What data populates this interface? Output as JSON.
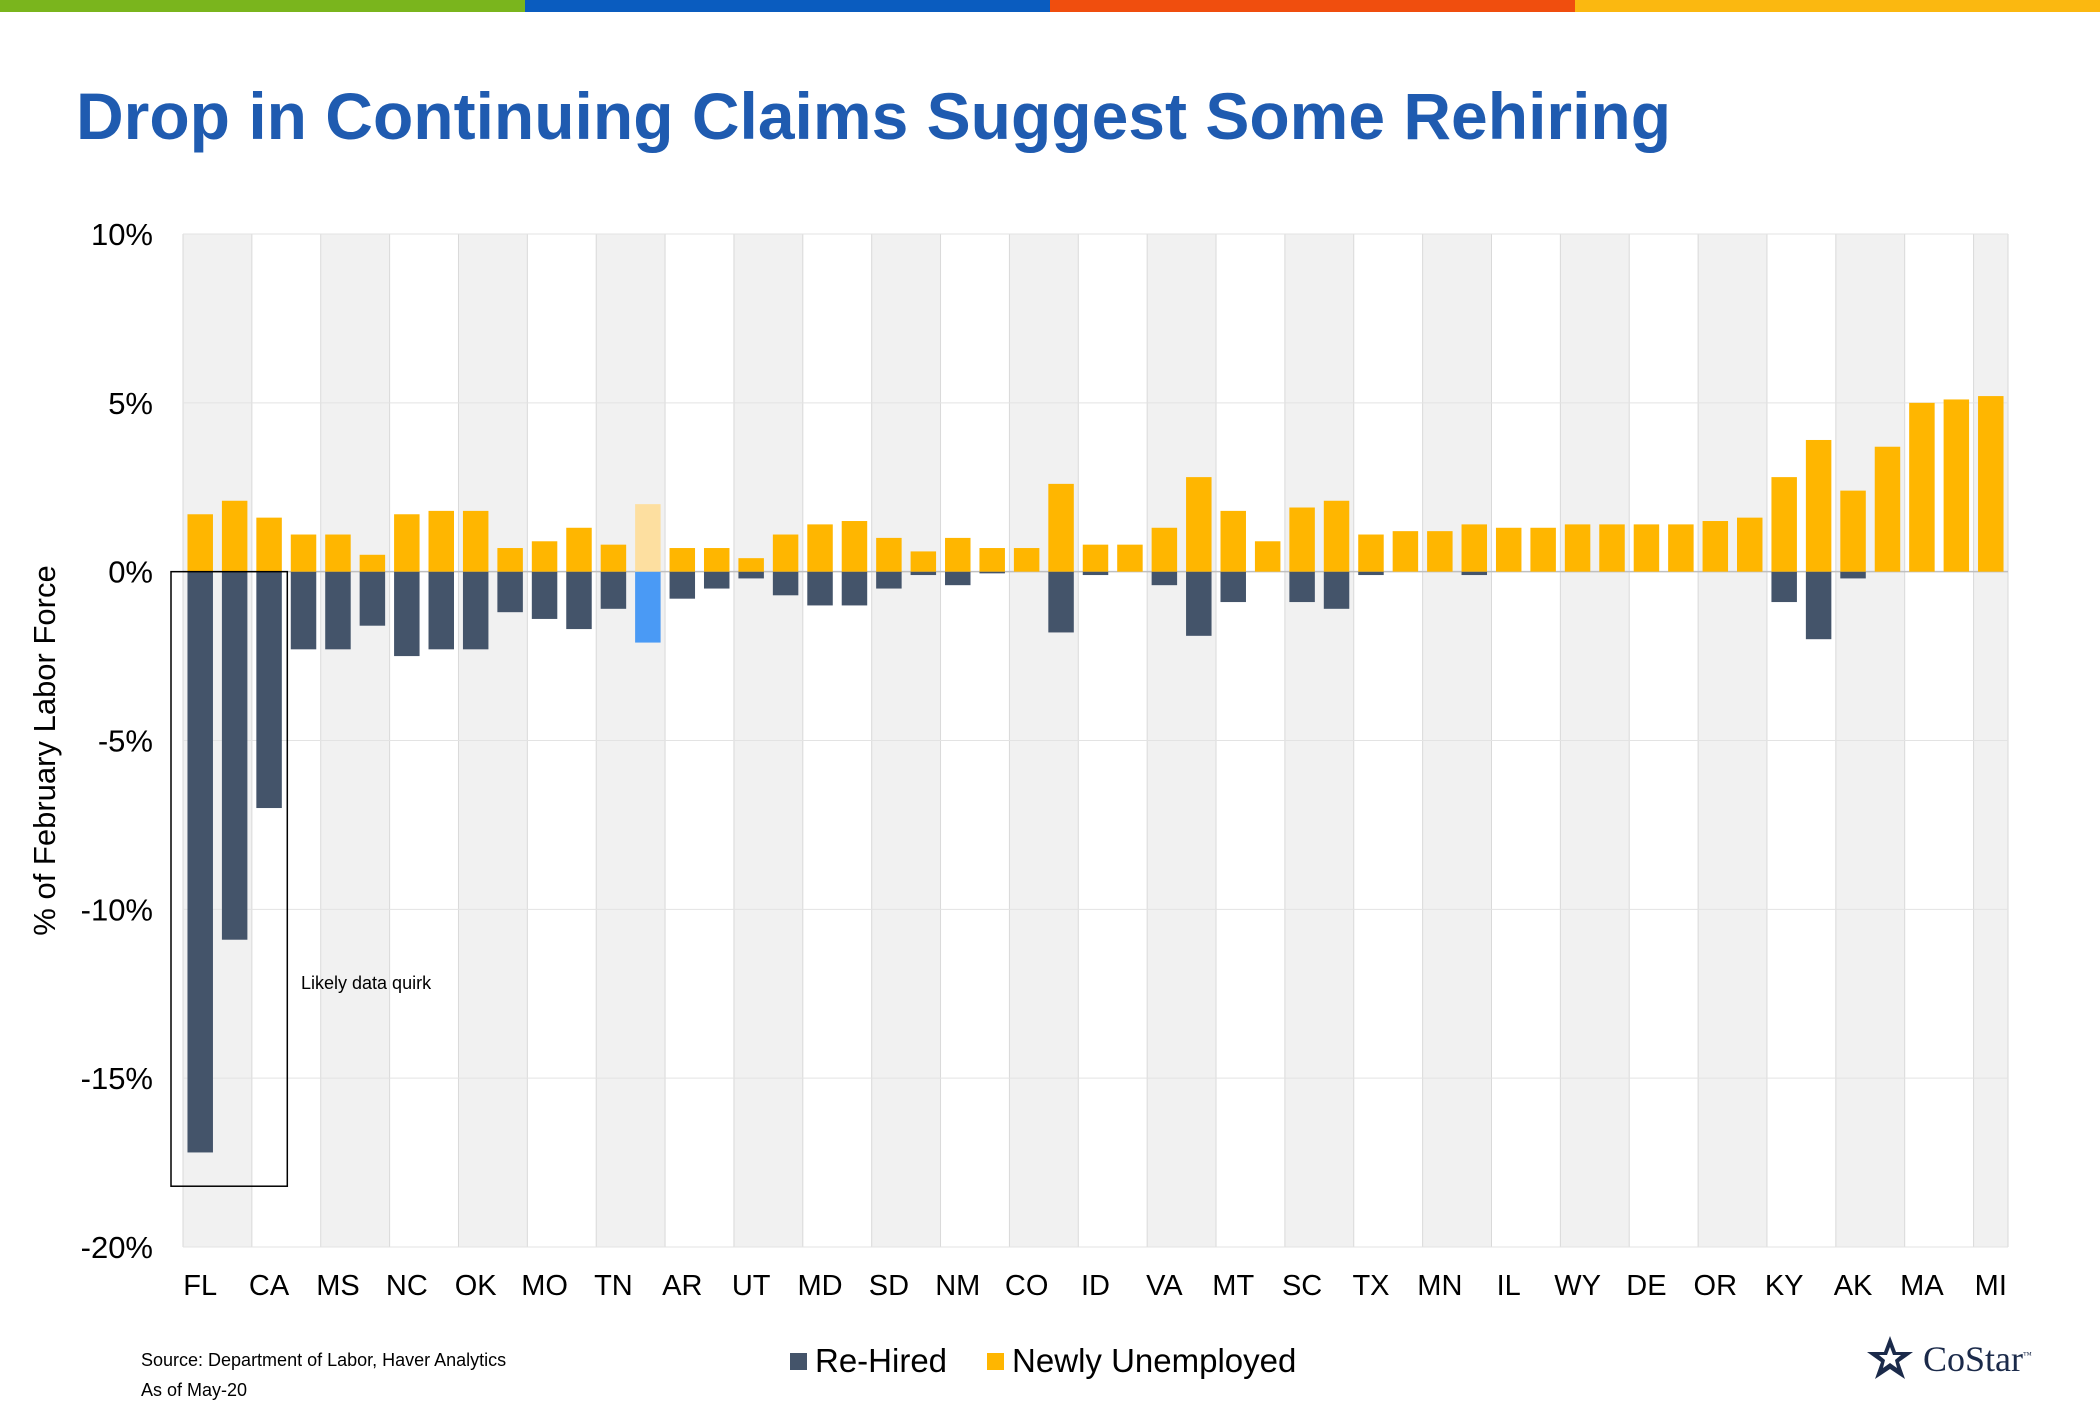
{
  "page": {
    "title": "Drop in Continuing Claims Suggest Some Rehiring",
    "source_lines": [
      "Source: Department of Labor, Haver Analytics",
      "As of May-20"
    ],
    "logo_text": "CoStar",
    "logo_tm": "™",
    "top_bar_colors": [
      "#7ab51d",
      "#0a5cbf",
      "#f04e0e",
      "#fbb810"
    ]
  },
  "chart_data": {
    "type": "bar",
    "ylabel": "% of February Labor Force",
    "ylim": [
      -20,
      10
    ],
    "yticks": [
      10,
      5,
      0,
      -5,
      -10,
      -15,
      -20
    ],
    "ytick_labels": [
      "10%",
      "5%",
      "0%",
      "-5%",
      "-10%",
      "-15%",
      "-20%"
    ],
    "xtick_labels": [
      "FL",
      "CA",
      "MS",
      "NC",
      "OK",
      "MO",
      "TN",
      "AR",
      "UT",
      "MD",
      "SD",
      "NM",
      "CO",
      "ID",
      "VA",
      "MT",
      "SC",
      "TX",
      "MN",
      "IL",
      "WY",
      "DE",
      "OR",
      "KY",
      "AK",
      "MA",
      "MI"
    ],
    "xtick_positions": [
      0,
      2,
      4,
      6,
      8,
      10,
      12,
      14,
      16,
      18,
      20,
      22,
      24,
      26,
      28,
      30,
      32,
      34,
      36,
      38,
      40,
      42,
      44,
      46,
      48,
      50,
      52
    ],
    "bar_count": 53,
    "series": [
      {
        "name": "Re-Hired",
        "color": "#44546a",
        "values": [
          -17.2,
          -10.9,
          -7.0,
          -2.3,
          -2.3,
          -1.6,
          -2.5,
          -2.3,
          -2.3,
          -1.2,
          -1.4,
          -1.7,
          -1.1,
          -2.1,
          -0.8,
          -0.5,
          -0.2,
          -0.7,
          -1.0,
          -1.0,
          -0.5,
          -0.1,
          -0.4,
          -0.05,
          0,
          -1.8,
          -0.1,
          0,
          -0.4,
          -1.9,
          -0.9,
          0,
          -0.9,
          -1.1,
          -0.1,
          0,
          0,
          -0.1,
          0,
          0,
          0,
          0,
          0,
          0,
          0,
          0,
          -0.9,
          -2.0,
          -0.2,
          0,
          0,
          0,
          0
        ]
      },
      {
        "name": "Newly Unemployed",
        "color": "#ffb600",
        "values": [
          1.7,
          2.1,
          1.6,
          1.1,
          1.1,
          0.5,
          1.7,
          1.8,
          1.8,
          0.7,
          0.9,
          1.3,
          0.8,
          2.0,
          0.7,
          0.7,
          0.4,
          1.1,
          1.4,
          1.5,
          1.0,
          0.6,
          1.0,
          0.7,
          0.7,
          2.6,
          0.8,
          0.8,
          1.3,
          2.8,
          1.8,
          0.9,
          1.9,
          2.1,
          1.1,
          1.2,
          1.2,
          1.4,
          1.3,
          1.3,
          1.4,
          1.4,
          1.4,
          1.4,
          1.5,
          1.6,
          2.8,
          3.9,
          2.4,
          3.7,
          5.0,
          5.1,
          5.2
        ]
      }
    ],
    "highlighted_bar_index": 13,
    "highlight_colors": {
      "Re-Hired": "#4a9af5",
      "Newly Unemployed": "#fddfa0"
    },
    "annotation": {
      "text": "Likely data quirk",
      "box_bars": [
        0,
        2
      ],
      "box_y": [
        0,
        -18.2
      ]
    },
    "legend_placement": "bottom-center",
    "grid": true
  }
}
